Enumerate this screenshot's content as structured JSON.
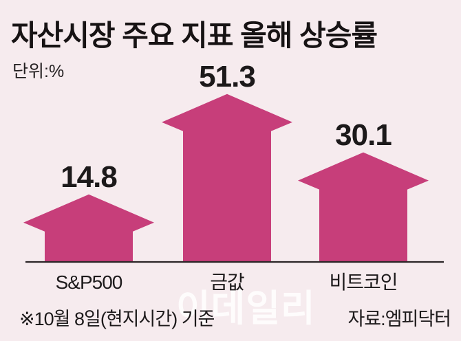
{
  "chart_data": {
    "type": "bar",
    "bar_style": "up-arrow",
    "title": "자산시장 주요 지표 올해 상승률",
    "unit_label": "단위:%",
    "categories": [
      "S&P500",
      "금값",
      "비트코인"
    ],
    "values": [
      14.8,
      51.3,
      30.1
    ],
    "value_labels": [
      "14.8",
      "51.3",
      "30.1"
    ],
    "xlabel": "",
    "ylabel": "",
    "grid": false,
    "legend": false,
    "bar_color": "#c73e7a",
    "value_label_color": "#1c191a",
    "axis_line_color": "#2b2526"
  },
  "footer": {
    "note": "※10월 8일(현지시간) 기준",
    "source": "자료:엠피닥터",
    "watermark": "이데일리"
  },
  "colors": {
    "background": "#f6ebee"
  }
}
